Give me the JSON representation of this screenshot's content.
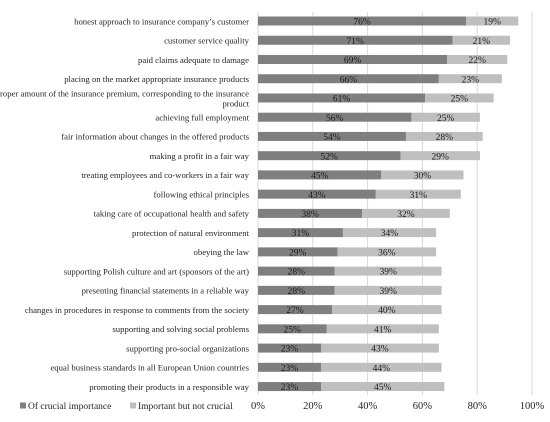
{
  "chart_data": {
    "type": "bar",
    "orientation": "horizontal",
    "stacked": true,
    "categories": [
      "honest approach to insurance company’s customer",
      "customer service quality",
      "paid claims adequate to damage",
      "placing on the market appropriate insurance products",
      "proper amount of the insurance premium, corresponding to the insurance product",
      "achieving full employment",
      "fair information about changes in the offered products",
      "making a profit in a fair way",
      "treating employees and co-workers in a fair way",
      "following ethical principles",
      "taking care of occupational health and safety",
      "protection of natural environment",
      "obeying the law",
      "supporting Polish culture and art (sponsors of the art)",
      "presenting financial statements in a reliable way",
      "changes in procedures in response to comments from the society",
      "supporting and solving social problems",
      "supporting pro-social organizations",
      "equal business standards in all European Union countries",
      "promoting their products in a responsible way"
    ],
    "category_lines": [
      [
        "honest approach to insurance company’s customer"
      ],
      [
        "customer service quality"
      ],
      [
        "paid claims adequate to damage"
      ],
      [
        "placing on the market appropriate insurance products"
      ],
      [
        "proper amount of the insurance premium, corresponding to the insurance",
        "product"
      ],
      [
        "achieving full employment"
      ],
      [
        "fair information about changes in the offered products"
      ],
      [
        "making a profit in a fair way"
      ],
      [
        "treating employees and co-workers in a fair way"
      ],
      [
        "following ethical principles"
      ],
      [
        "taking care of occupational health and safety"
      ],
      [
        "protection of natural environment"
      ],
      [
        "obeying the law"
      ],
      [
        "supporting Polish culture and art (sponsors of the art)"
      ],
      [
        "presenting financial statements in a reliable way"
      ],
      [
        "changes in procedures in response to comments from the society"
      ],
      [
        "supporting and solving social problems"
      ],
      [
        "supporting pro-social organizations"
      ],
      [
        "equal business standards in all European Union countries"
      ],
      [
        "promoting their products in a responsible way"
      ]
    ],
    "series": [
      {
        "name": "Of crucial importance",
        "color": "#7f7f7f",
        "values": [
          76,
          71,
          69,
          66,
          61,
          56,
          54,
          52,
          45,
          43,
          38,
          31,
          29,
          28,
          28,
          27,
          25,
          23,
          23,
          23
        ]
      },
      {
        "name": "Important but not crucial",
        "color": "#bfbfbf",
        "values": [
          19,
          21,
          22,
          23,
          25,
          25,
          28,
          29,
          30,
          31,
          32,
          34,
          36,
          39,
          39,
          40,
          41,
          43,
          44,
          45
        ]
      }
    ],
    "value_suffix": "%",
    "xlim": [
      0,
      100
    ],
    "xticks": [
      0,
      20,
      40,
      60,
      80,
      100
    ],
    "xtick_labels": [
      "0%",
      "20%",
      "40%",
      "60%",
      "80%",
      "100%"
    ],
    "grid": "vertical",
    "legend_position": "bottom-left",
    "title": "",
    "xlabel": "",
    "ylabel": ""
  }
}
